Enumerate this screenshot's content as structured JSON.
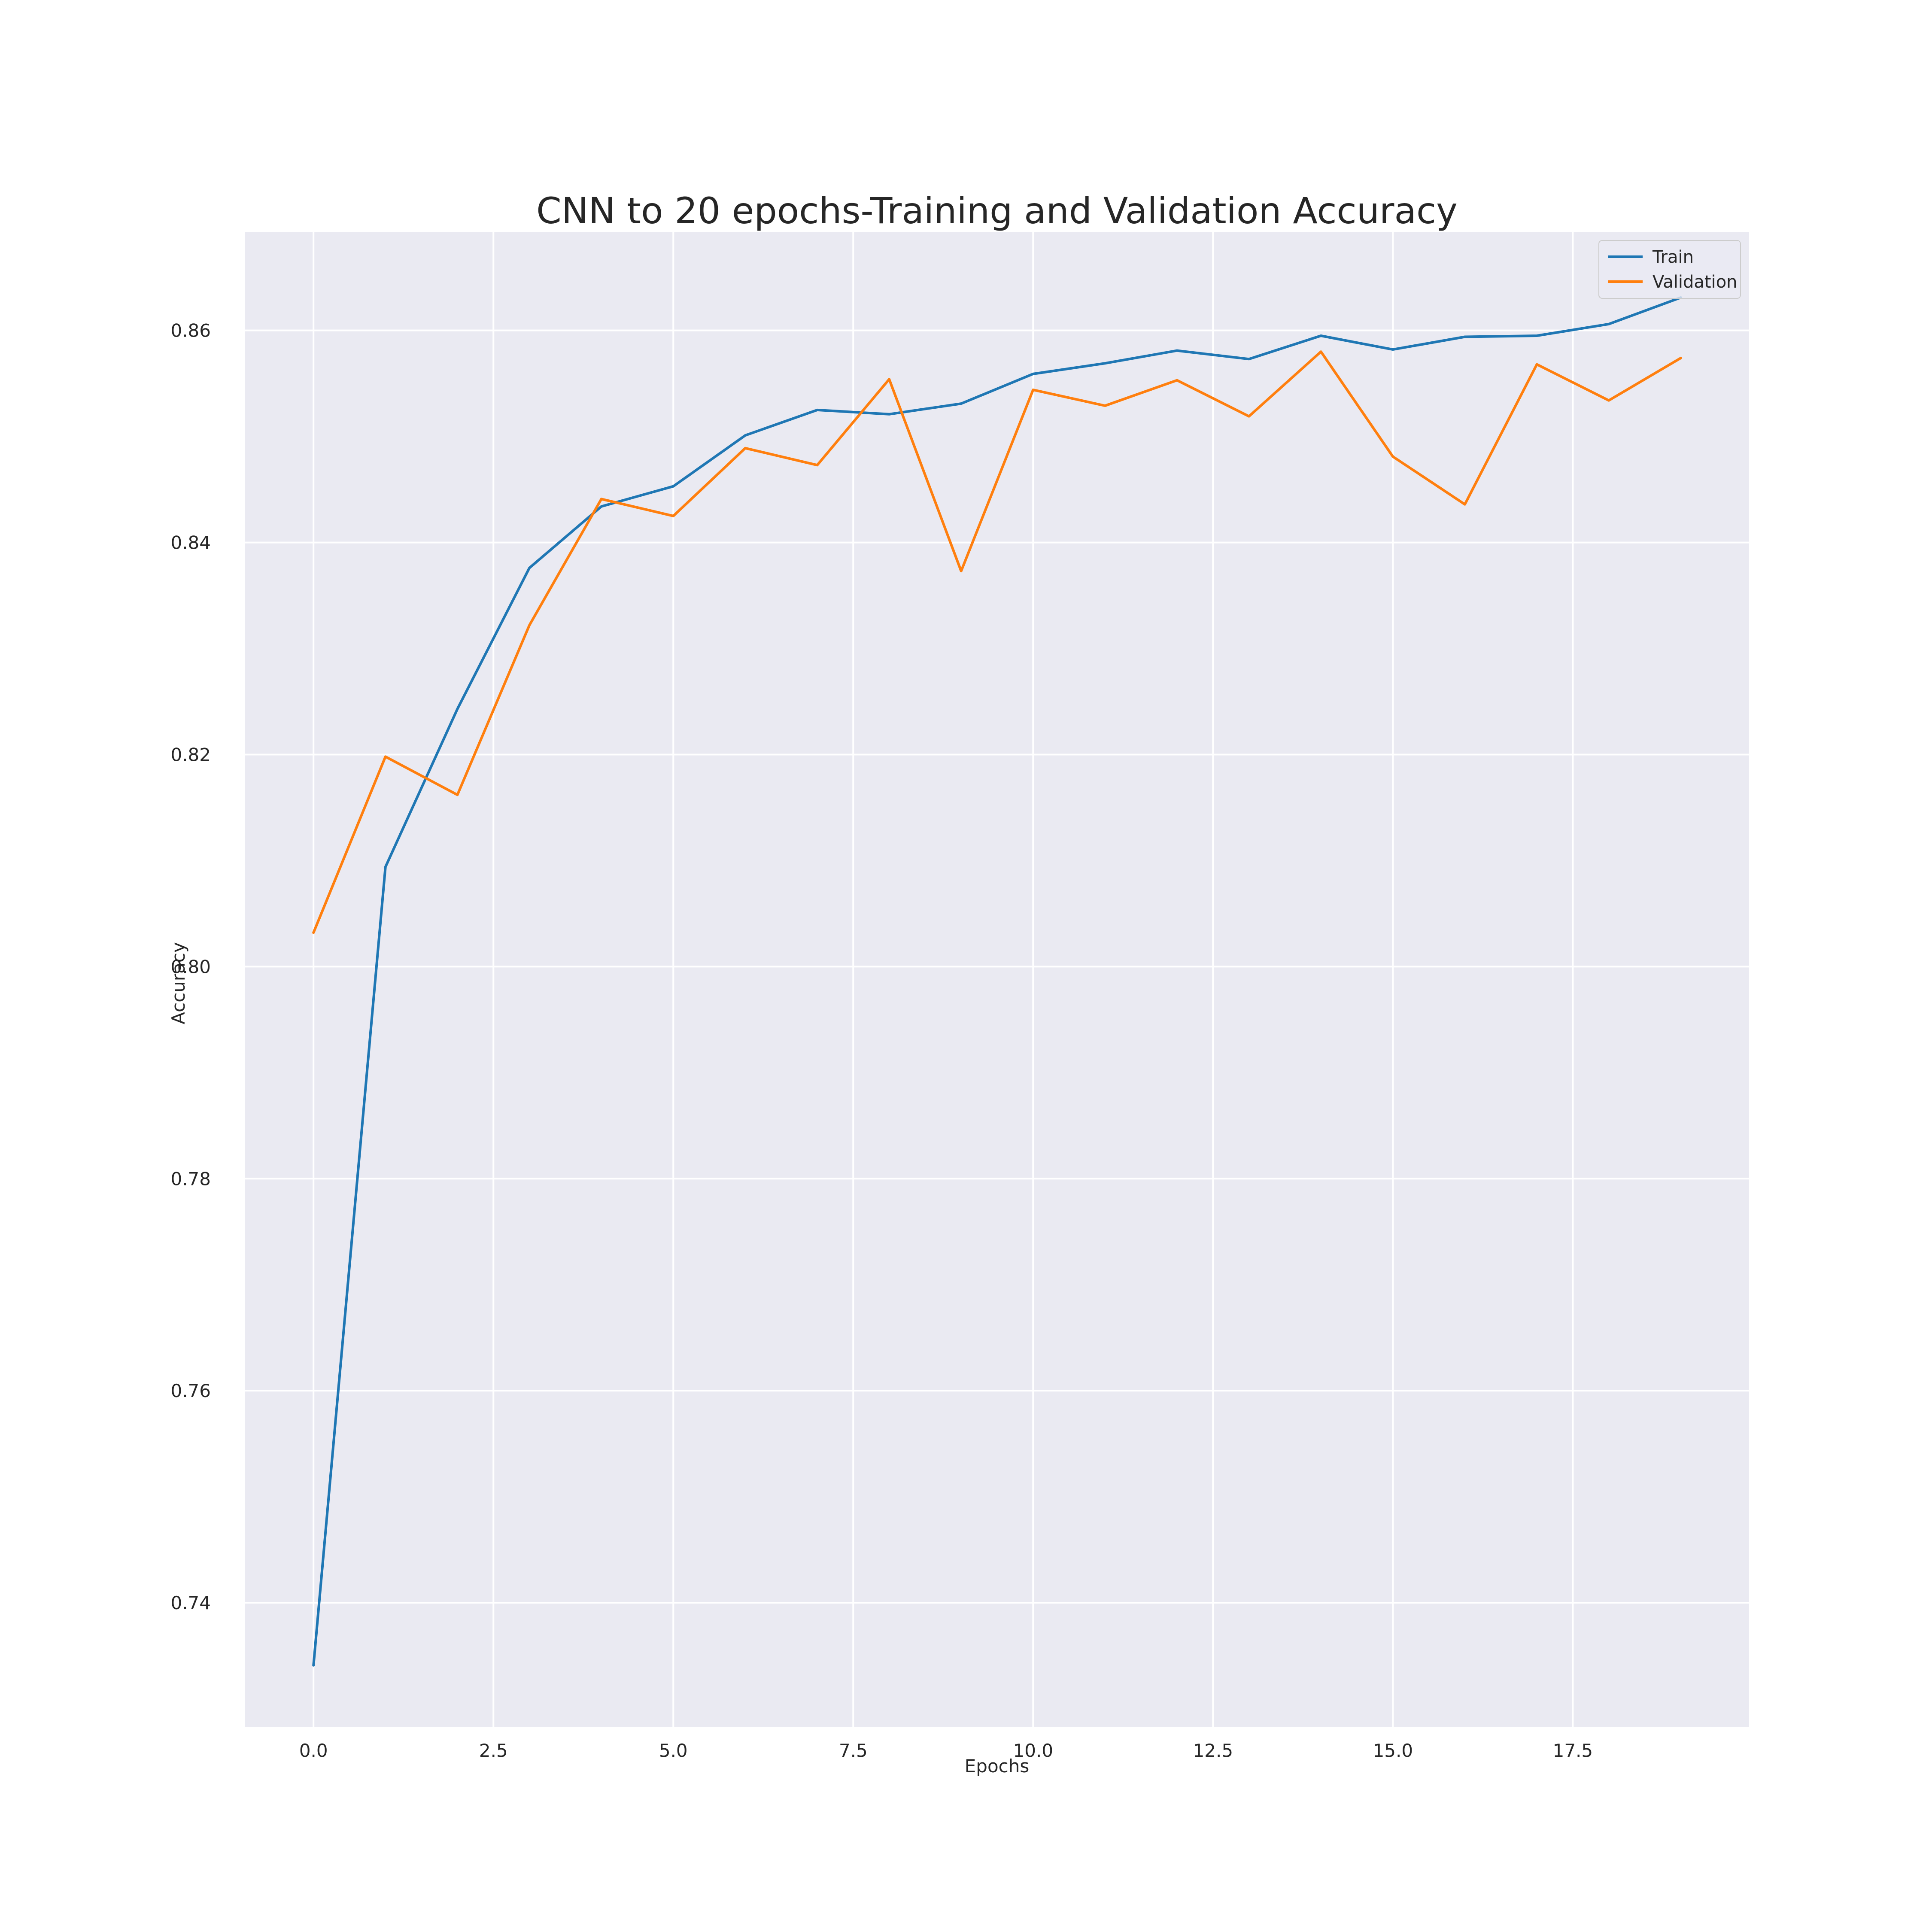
{
  "chart_data": {
    "type": "line",
    "title": "CNN to 20 epochs-Training and Validation Accuracy",
    "xlabel": "Epochs",
    "ylabel": "Accuracy",
    "xlim": [
      -0.95,
      19.95
    ],
    "ylim": [
      0.7283,
      0.8693
    ],
    "xticks": [
      0.0,
      2.5,
      5.0,
      7.5,
      10.0,
      12.5,
      15.0,
      17.5
    ],
    "xtick_labels": [
      "0.0",
      "2.5",
      "5.0",
      "7.5",
      "10.0",
      "12.5",
      "15.0",
      "17.5"
    ],
    "yticks": [
      0.74,
      0.76,
      0.78,
      0.8,
      0.82,
      0.84,
      0.86
    ],
    "ytick_labels": [
      "0.74",
      "0.76",
      "0.78",
      "0.80",
      "0.82",
      "0.84",
      "0.86"
    ],
    "grid": true,
    "legend_position": "top-right",
    "background_color": "#eaeaf2",
    "x": [
      0,
      1,
      2,
      3,
      4,
      5,
      6,
      7,
      8,
      9,
      10,
      11,
      12,
      13,
      14,
      15,
      16,
      17,
      18,
      19
    ],
    "series": [
      {
        "name": "Train",
        "color": "#1f77b4",
        "values": [
          0.7341,
          0.8094,
          0.8243,
          0.8376,
          0.8434,
          0.8453,
          0.8501,
          0.8525,
          0.8521,
          0.8531,
          0.8559,
          0.8569,
          0.8581,
          0.8573,
          0.8595,
          0.8582,
          0.8594,
          0.8595,
          0.8606,
          0.8631
        ]
      },
      {
        "name": "Validation",
        "color": "#ff7f0e",
        "values": [
          0.8032,
          0.8198,
          0.8162,
          0.8322,
          0.8441,
          0.8425,
          0.8489,
          0.8473,
          0.8554,
          0.8373,
          0.8544,
          0.8529,
          0.8553,
          0.8519,
          0.858,
          0.8481,
          0.8436,
          0.8568,
          0.8534,
          0.8574
        ]
      }
    ]
  }
}
